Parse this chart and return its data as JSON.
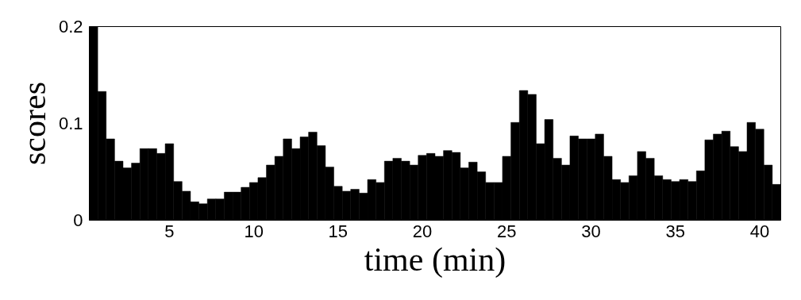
{
  "chart_data": {
    "type": "histogram",
    "xlabel": "time (min)",
    "ylabel": "scores",
    "color": "#000000",
    "bins": [
      0.25,
      0.75,
      1.25,
      1.75,
      2.25,
      2.75,
      3.25,
      3.75,
      4.25,
      4.75,
      5.25,
      5.75,
      6.25,
      6.75,
      7.25,
      7.75,
      8.25,
      8.75,
      9.25,
      9.75,
      10.25,
      10.75,
      11.25,
      11.75,
      12.25,
      12.75,
      13.25,
      13.75,
      14.25,
      14.75,
      15.25,
      15.75,
      16.25,
      16.75,
      17.25,
      17.75,
      18.25,
      18.75,
      19.25,
      19.75,
      20.25,
      20.75,
      21.25,
      21.75,
      22.25,
      22.75,
      23.25,
      23.75,
      24.25,
      24.75,
      25.25,
      25.75,
      26.25,
      26.75,
      27.25,
      27.75,
      28.25,
      28.75,
      29.25,
      29.75,
      30.25,
      30.75,
      31.25,
      31.75,
      32.25,
      32.75,
      33.25,
      33.75,
      34.25,
      34.75,
      35.25,
      35.75,
      36.25,
      36.75,
      37.25,
      37.75,
      38.25,
      38.75,
      39.25,
      39.75,
      40.25,
      40.75,
      41.25
    ],
    "values": [
      0.2,
      0.133,
      0.084,
      0.061,
      0.054,
      0.059,
      0.074,
      0.074,
      0.069,
      0.079,
      0.04,
      0.03,
      0.019,
      0.017,
      0.022,
      0.022,
      0.029,
      0.029,
      0.034,
      0.039,
      0.044,
      0.057,
      0.066,
      0.084,
      0.074,
      0.086,
      0.091,
      0.077,
      0.055,
      0.035,
      0.03,
      0.032,
      0.028,
      0.042,
      0.039,
      0.061,
      0.064,
      0.061,
      0.057,
      0.067,
      0.069,
      0.066,
      0.072,
      0.07,
      0.054,
      0.06,
      0.05,
      0.039,
      0.039,
      0.066,
      0.101,
      0.134,
      0.13,
      0.079,
      0.104,
      0.064,
      0.057,
      0.087,
      0.084,
      0.084,
      0.089,
      0.066,
      0.042,
      0.039,
      0.046,
      0.071,
      0.064,
      0.046,
      0.042,
      0.04,
      0.042,
      0.04,
      0.051,
      0.083,
      0.089,
      0.092,
      0.076,
      0.071,
      0.101,
      0.094,
      0.057,
      0.037
    ],
    "xlim": [
      0.25,
      41.25
    ],
    "ylim": [
      0,
      0.2
    ],
    "xticks": [
      5,
      10,
      15,
      20,
      25,
      30,
      35,
      40
    ],
    "yticks": [
      0,
      0.1,
      0.2
    ],
    "grid": false
  }
}
